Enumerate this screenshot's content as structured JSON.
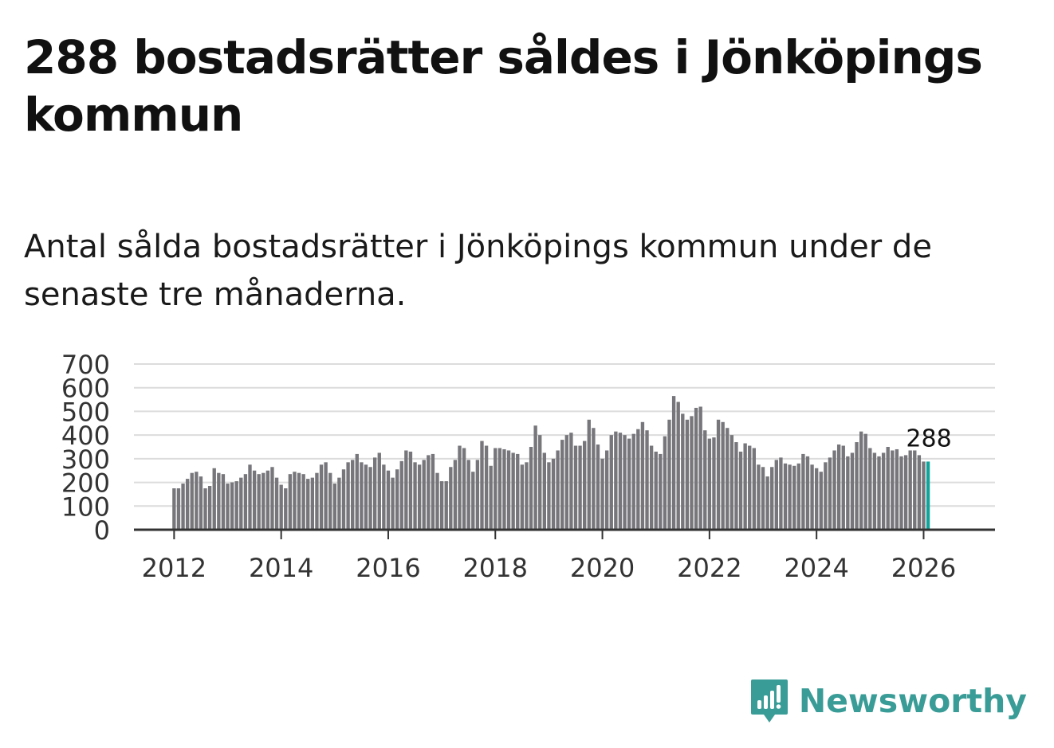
{
  "header": {
    "title": "288 bostadsrätter såldes i Jönköpings kommun",
    "subtitle": "Antal sålda bostadsrätter i Jönköpings kommun under de senaste tre månaderna."
  },
  "brand": {
    "name": "Newsworthy",
    "color": "#3a9c97",
    "icon": "bar-chart-speech-bubble-icon"
  },
  "colors": {
    "bar": "#77767b",
    "highlight": "#13a39b",
    "grid": "#dcdcdc",
    "axis": "#333333"
  },
  "chart_data": {
    "type": "bar",
    "title": "",
    "xlabel": "",
    "ylabel": "",
    "ylim": [
      0,
      700
    ],
    "yticks": [
      0,
      100,
      200,
      300,
      400,
      500,
      600,
      700
    ],
    "xticks": [
      "2012",
      "2014",
      "2016",
      "2018",
      "2020",
      "2022",
      "2024",
      "2026"
    ],
    "start": "2012-01",
    "x_range": [
      "2011-04",
      "2027-05"
    ],
    "grid": true,
    "highlight_label": "288",
    "values": [
      175,
      175,
      195,
      215,
      240,
      245,
      225,
      175,
      185,
      260,
      240,
      235,
      195,
      200,
      205,
      220,
      235,
      275,
      250,
      235,
      240,
      250,
      265,
      220,
      190,
      175,
      235,
      245,
      240,
      235,
      215,
      220,
      240,
      275,
      285,
      240,
      195,
      220,
      255,
      285,
      295,
      320,
      285,
      275,
      265,
      305,
      325,
      275,
      250,
      220,
      255,
      290,
      335,
      330,
      285,
      275,
      295,
      315,
      320,
      240,
      205,
      205,
      265,
      295,
      355,
      345,
      295,
      245,
      295,
      375,
      355,
      270,
      345,
      345,
      340,
      335,
      325,
      320,
      275,
      285,
      350,
      440,
      400,
      325,
      285,
      300,
      335,
      380,
      400,
      410,
      355,
      355,
      375,
      465,
      430,
      360,
      300,
      335,
      400,
      415,
      410,
      400,
      385,
      405,
      425,
      455,
      420,
      355,
      330,
      320,
      395,
      465,
      565,
      540,
      490,
      465,
      480,
      515,
      520,
      420,
      385,
      390,
      465,
      455,
      430,
      400,
      370,
      330,
      365,
      355,
      345,
      275,
      265,
      225,
      265,
      295,
      305,
      280,
      275,
      270,
      280,
      320,
      310,
      275,
      260,
      245,
      285,
      305,
      335,
      360,
      355,
      310,
      325,
      370,
      415,
      405,
      345,
      325,
      310,
      325,
      350,
      335,
      340,
      310,
      315,
      335,
      335,
      315,
      288,
      288
    ]
  }
}
